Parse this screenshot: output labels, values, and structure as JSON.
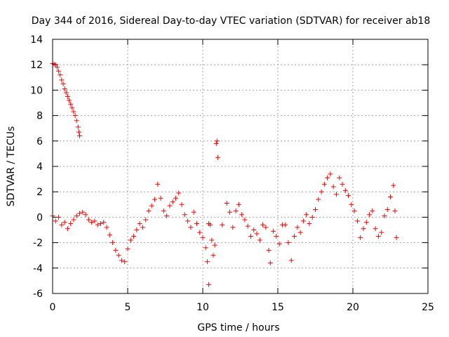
{
  "chart_data": {
    "type": "scatter",
    "title": "Day 344 of 2016, Sidereal Day-to-day VTEC variation (SDTVAR) for receiver ab18",
    "xlabel": "GPS time / hours",
    "ylabel": "SDTVAR / TECUs",
    "xlim": [
      0,
      25
    ],
    "ylim": [
      -6,
      14
    ],
    "x_ticks": [
      0,
      5,
      10,
      15,
      20,
      25
    ],
    "y_ticks": [
      -6,
      -4,
      -2,
      0,
      2,
      4,
      6,
      8,
      10,
      12,
      14
    ],
    "grid": true,
    "marker": "+",
    "series": [
      {
        "name": "SDTVAR",
        "color": "#ff0000",
        "points": [
          [
            0.0,
            12.1
          ],
          [
            0.1,
            12.05
          ],
          [
            0.2,
            12.0
          ],
          [
            0.3,
            11.8
          ],
          [
            0.4,
            11.5
          ],
          [
            0.5,
            11.2
          ],
          [
            0.6,
            10.8
          ],
          [
            0.7,
            10.5
          ],
          [
            0.8,
            10.1
          ],
          [
            0.9,
            9.8
          ],
          [
            1.0,
            9.5
          ],
          [
            1.1,
            9.2
          ],
          [
            1.2,
            8.9
          ],
          [
            1.3,
            8.6
          ],
          [
            1.4,
            8.3
          ],
          [
            1.5,
            8.0
          ],
          [
            1.6,
            7.6
          ],
          [
            1.7,
            7.1
          ],
          [
            1.75,
            6.7
          ],
          [
            1.8,
            6.4
          ],
          [
            0.0,
            0.1
          ],
          [
            0.2,
            -0.3
          ],
          [
            0.4,
            0.0
          ],
          [
            0.6,
            -0.6
          ],
          [
            0.8,
            -0.4
          ],
          [
            1.0,
            -0.9
          ],
          [
            1.2,
            -0.5
          ],
          [
            1.4,
            -0.2
          ],
          [
            1.6,
            0.1
          ],
          [
            1.8,
            0.3
          ],
          [
            2.0,
            0.4
          ],
          [
            2.2,
            0.2
          ],
          [
            2.4,
            -0.2
          ],
          [
            2.6,
            -0.4
          ],
          [
            2.8,
            -0.3
          ],
          [
            3.0,
            -0.6
          ],
          [
            3.2,
            -0.5
          ],
          [
            3.4,
            -0.4
          ],
          [
            3.6,
            -0.8
          ],
          [
            3.8,
            -1.4
          ],
          [
            4.0,
            -2.0
          ],
          [
            4.2,
            -2.6
          ],
          [
            4.4,
            -3.0
          ],
          [
            4.6,
            -3.4
          ],
          [
            4.8,
            -3.5
          ],
          [
            5.0,
            -2.5
          ],
          [
            5.2,
            -1.8
          ],
          [
            5.4,
            -1.5
          ],
          [
            5.6,
            -1.0
          ],
          [
            5.8,
            -0.5
          ],
          [
            6.0,
            -0.8
          ],
          [
            6.2,
            -0.2
          ],
          [
            6.4,
            0.5
          ],
          [
            6.6,
            0.9
          ],
          [
            6.8,
            1.4
          ],
          [
            7.0,
            2.6
          ],
          [
            7.2,
            1.5
          ],
          [
            7.4,
            0.5
          ],
          [
            7.6,
            0.1
          ],
          [
            7.8,
            0.9
          ],
          [
            8.0,
            1.2
          ],
          [
            8.2,
            1.5
          ],
          [
            8.4,
            1.9
          ],
          [
            8.6,
            1.0
          ],
          [
            8.8,
            0.2
          ],
          [
            9.0,
            -0.3
          ],
          [
            9.2,
            -0.8
          ],
          [
            9.4,
            0.4
          ],
          [
            9.6,
            -0.5
          ],
          [
            9.8,
            -1.2
          ],
          [
            10.0,
            -1.6
          ],
          [
            10.2,
            -2.4
          ],
          [
            10.3,
            -3.5
          ],
          [
            10.4,
            -0.5
          ],
          [
            10.5,
            -0.6
          ],
          [
            10.6,
            -1.8
          ],
          [
            10.7,
            -3.0
          ],
          [
            10.8,
            -2.2
          ],
          [
            10.4,
            -5.3
          ],
          [
            10.9,
            5.8
          ],
          [
            10.95,
            6.0
          ],
          [
            11.0,
            4.7
          ],
          [
            11.3,
            -0.6
          ],
          [
            11.6,
            1.1
          ],
          [
            11.8,
            0.4
          ],
          [
            12.0,
            -0.8
          ],
          [
            12.2,
            0.5
          ],
          [
            12.4,
            1.0
          ],
          [
            12.6,
            0.2
          ],
          [
            12.8,
            -0.2
          ],
          [
            13.0,
            -0.7
          ],
          [
            13.2,
            -1.5
          ],
          [
            13.4,
            -1.0
          ],
          [
            13.6,
            -1.3
          ],
          [
            13.8,
            -1.8
          ],
          [
            14.0,
            -0.6
          ],
          [
            14.2,
            -0.8
          ],
          [
            14.4,
            -2.6
          ],
          [
            14.5,
            -3.6
          ],
          [
            14.7,
            -1.1
          ],
          [
            14.9,
            -1.5
          ],
          [
            15.1,
            -2.1
          ],
          [
            15.3,
            -0.6
          ],
          [
            15.5,
            -0.6
          ],
          [
            15.7,
            -2.0
          ],
          [
            15.9,
            -3.4
          ],
          [
            16.1,
            -1.5
          ],
          [
            16.3,
            -0.8
          ],
          [
            16.5,
            -1.2
          ],
          [
            16.7,
            -0.3
          ],
          [
            16.9,
            0.2
          ],
          [
            17.1,
            -0.5
          ],
          [
            17.3,
            0.0
          ],
          [
            17.5,
            0.6
          ],
          [
            17.7,
            1.4
          ],
          [
            17.9,
            2.0
          ],
          [
            18.1,
            2.6
          ],
          [
            18.3,
            3.1
          ],
          [
            18.5,
            3.4
          ],
          [
            18.7,
            2.4
          ],
          [
            18.9,
            1.8
          ],
          [
            19.1,
            3.1
          ],
          [
            19.3,
            2.6
          ],
          [
            19.5,
            2.1
          ],
          [
            19.7,
            1.7
          ],
          [
            19.9,
            1.0
          ],
          [
            20.1,
            0.5
          ],
          [
            20.3,
            -0.3
          ],
          [
            20.5,
            -1.6
          ],
          [
            20.7,
            -0.9
          ],
          [
            20.9,
            -0.4
          ],
          [
            21.1,
            0.2
          ],
          [
            21.3,
            0.5
          ],
          [
            21.5,
            -0.9
          ],
          [
            21.7,
            -1.5
          ],
          [
            21.9,
            -1.2
          ],
          [
            22.1,
            0.1
          ],
          [
            22.3,
            0.6
          ],
          [
            22.5,
            1.6
          ],
          [
            22.7,
            2.5
          ],
          [
            22.8,
            0.5
          ],
          [
            22.9,
            -1.6
          ]
        ]
      }
    ]
  }
}
